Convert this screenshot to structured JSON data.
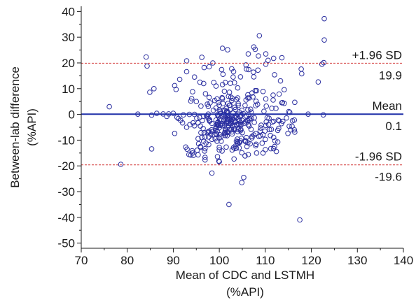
{
  "chart_data": {
    "type": "scatter",
    "title": "",
    "xlabel": [
      "Mean of CDC and LSTMH",
      "(%API)"
    ],
    "ylabel": [
      "Between-lab difference",
      "(%API)"
    ],
    "xlim": [
      70,
      140
    ],
    "ylim": [
      -52,
      42
    ],
    "xticks": [
      "70",
      "80",
      "90",
      "100",
      "110",
      "120",
      "130",
      "140"
    ],
    "yticks": [
      "40",
      "30",
      "20",
      "10",
      "0",
      "-10",
      "-20",
      "-30",
      "-40",
      "-50"
    ],
    "grid": false,
    "reference_lines": [
      {
        "name": "+1.96 SD",
        "value": 19.9,
        "value_label": "19.9",
        "style": "dashed",
        "color": "#d23a3a"
      },
      {
        "name": "Mean",
        "value": 0.1,
        "value_label": "0.1",
        "style": "solid",
        "color": "#1f2fa8"
      },
      {
        "name": "-1.96 SD",
        "value": -19.6,
        "value_label": "-19.6",
        "style": "dashed",
        "color": "#d23a3a"
      }
    ],
    "marker": {
      "shape": "open-circle",
      "color": "#2b2fa0"
    },
    "points": [
      [
        76.1,
        3.0
      ],
      [
        78.6,
        -19.4
      ],
      [
        82.3,
        0.1
      ],
      [
        84.1,
        22.3
      ],
      [
        84.3,
        18.8
      ],
      [
        84.9,
        8.6
      ],
      [
        85.3,
        -0.3
      ],
      [
        85.3,
        -13.4
      ],
      [
        85.8,
        10.0
      ],
      [
        86.4,
        0.4
      ],
      [
        87.8,
        0.2
      ],
      [
        88.6,
        -0.8
      ],
      [
        89.0,
        0.2
      ],
      [
        90.0,
        0.4
      ],
      [
        90.3,
        11.2
      ],
      [
        90.3,
        -7.4
      ],
      [
        90.6,
        9.7
      ],
      [
        90.8,
        -1.1
      ],
      [
        91.1,
        -1.6
      ],
      [
        91.4,
        13.6
      ],
      [
        91.6,
        -2.3
      ],
      [
        92.0,
        -3.3
      ],
      [
        92.2,
        -0.2
      ],
      [
        92.7,
        -12.7
      ],
      [
        92.9,
        20.8
      ],
      [
        92.9,
        16.6
      ],
      [
        92.9,
        -5.0
      ],
      [
        93.0,
        -13.5
      ],
      [
        93.4,
        -15.6
      ],
      [
        93.5,
        -0.0
      ],
      [
        93.6,
        -4.0
      ],
      [
        93.8,
        5.2
      ],
      [
        93.8,
        -15.8
      ],
      [
        94.0,
        6.1
      ],
      [
        94.1,
        -14.1
      ],
      [
        94.2,
        -15.0
      ],
      [
        94.2,
        8.8
      ],
      [
        94.3,
        -3.3
      ],
      [
        94.4,
        -15.9
      ],
      [
        94.6,
        -4.4
      ],
      [
        94.6,
        14.5
      ],
      [
        94.6,
        -0.0
      ],
      [
        95.0,
        5.0
      ],
      [
        95.1,
        -1.5
      ],
      [
        95.2,
        -13.9
      ],
      [
        95.4,
        -15.7
      ],
      [
        95.4,
        -9.4
      ],
      [
        95.4,
        -3.3
      ],
      [
        95.5,
        -11.4
      ],
      [
        95.7,
        -1.2
      ],
      [
        95.8,
        12.5
      ],
      [
        95.9,
        -12.8
      ],
      [
        95.9,
        -12.5
      ],
      [
        95.9,
        -4.5
      ],
      [
        96.0,
        3.2
      ],
      [
        96.0,
        -7.1
      ],
      [
        96.2,
        -9.0
      ],
      [
        96.2,
        22.2
      ],
      [
        96.3,
        -2.4
      ],
      [
        96.5,
        -5.5
      ],
      [
        96.6,
        -0.7
      ],
      [
        96.6,
        12.0
      ],
      [
        96.6,
        -10.4
      ],
      [
        96.7,
        18.2
      ],
      [
        96.7,
        -7.1
      ],
      [
        96.8,
        -14.2
      ],
      [
        96.9,
        -16.7
      ],
      [
        96.9,
        -8.8
      ],
      [
        96.9,
        -17.7
      ],
      [
        96.9,
        -13.3
      ],
      [
        97.0,
        8.0
      ],
      [
        97.1,
        -11.1
      ],
      [
        97.2,
        -0.6
      ],
      [
        97.4,
        -6.9
      ],
      [
        97.4,
        -0.6
      ],
      [
        97.4,
        4.0
      ],
      [
        97.6,
        -1.6
      ],
      [
        97.6,
        0.1
      ],
      [
        97.6,
        3.1
      ],
      [
        97.7,
        -6.9
      ],
      [
        97.7,
        -11.7
      ],
      [
        97.7,
        -8.8
      ],
      [
        97.8,
        18.5
      ],
      [
        97.8,
        -6.5
      ],
      [
        97.8,
        6.6
      ],
      [
        97.9,
        -2.6
      ],
      [
        97.9,
        -2.1
      ],
      [
        97.9,
        -2.5
      ],
      [
        98.0,
        4.5
      ],
      [
        98.1,
        -7.7
      ],
      [
        98.3,
        -6.0
      ],
      [
        98.4,
        -22.8
      ],
      [
        98.4,
        -9.7
      ],
      [
        98.4,
        -3.5
      ],
      [
        98.5,
        -6.7
      ],
      [
        98.6,
        20.0
      ],
      [
        98.7,
        1.6
      ],
      [
        98.8,
        12.4
      ],
      [
        98.8,
        -7.9
      ],
      [
        99.0,
        5.4
      ],
      [
        99.1,
        -9.5
      ],
      [
        99.2,
        -5.3
      ],
      [
        99.2,
        -6.3
      ],
      [
        99.3,
        -2.2
      ],
      [
        99.3,
        11.0
      ],
      [
        99.3,
        -7.5
      ],
      [
        99.3,
        2.5
      ],
      [
        99.4,
        -4.1
      ],
      [
        99.4,
        -7.7
      ],
      [
        99.4,
        -5.0
      ],
      [
        99.5,
        -10.4
      ],
      [
        99.5,
        6.0
      ],
      [
        99.6,
        -16.4
      ],
      [
        99.6,
        -0.1
      ],
      [
        99.6,
        -6.6
      ],
      [
        99.6,
        -3.3
      ],
      [
        99.6,
        -4.0
      ],
      [
        99.7,
        -0.5
      ],
      [
        99.7,
        -3.0
      ],
      [
        99.7,
        -3.2
      ],
      [
        99.8,
        -4.3
      ],
      [
        99.8,
        4.6
      ],
      [
        99.8,
        -3.8
      ],
      [
        99.9,
        -18.1
      ],
      [
        99.9,
        -0.9
      ],
      [
        100.0,
        1.8
      ],
      [
        100.0,
        -5.2
      ],
      [
        100.0,
        -18.4
      ],
      [
        100.0,
        -13.8
      ],
      [
        100.0,
        -12.8
      ],
      [
        100.0,
        -9.2
      ],
      [
        100.0,
        3.6
      ],
      [
        100.1,
        -1.9
      ],
      [
        100.1,
        -7.9
      ],
      [
        100.2,
        -4.2
      ],
      [
        100.2,
        1.2
      ],
      [
        100.3,
        -8.8
      ],
      [
        100.3,
        0.4
      ],
      [
        100.4,
        -10.4
      ],
      [
        100.4,
        -2.3
      ],
      [
        100.5,
        17.4
      ],
      [
        100.5,
        -0.4
      ],
      [
        100.6,
        -14.2
      ],
      [
        100.6,
        -3.6
      ],
      [
        100.6,
        6.5
      ],
      [
        100.6,
        -4.4
      ],
      [
        100.7,
        25.7
      ],
      [
        100.7,
        11.6
      ],
      [
        100.7,
        6.1
      ],
      [
        100.8,
        15.6
      ],
      [
        100.8,
        4.2
      ],
      [
        100.9,
        1.6
      ],
      [
        101.0,
        -0.1
      ],
      [
        101.0,
        -2.0
      ],
      [
        101.0,
        -2.4
      ],
      [
        101.1,
        9.0
      ],
      [
        101.1,
        -4.3
      ],
      [
        101.1,
        -7.4
      ],
      [
        101.2,
        1.6
      ],
      [
        101.2,
        -7.0
      ],
      [
        101.3,
        -6.3
      ],
      [
        101.3,
        -1.4
      ],
      [
        101.3,
        12.4
      ],
      [
        101.3,
        -8.2
      ],
      [
        101.4,
        -7.6
      ],
      [
        101.4,
        -0.3
      ],
      [
        101.4,
        -5.7
      ],
      [
        101.5,
        2.3
      ],
      [
        101.5,
        -3.2
      ],
      [
        101.5,
        -12.7
      ],
      [
        101.6,
        -3.5
      ],
      [
        101.6,
        1.1
      ],
      [
        101.7,
        0.6
      ],
      [
        101.7,
        -0.6
      ],
      [
        101.7,
        -8.3
      ],
      [
        101.7,
        -1.7
      ],
      [
        101.7,
        -2.6
      ],
      [
        101.7,
        -6.7
      ],
      [
        101.8,
        -7.0
      ],
      [
        101.8,
        25.1
      ],
      [
        101.8,
        1.1
      ],
      [
        101.9,
        -1.9
      ],
      [
        101.9,
        4.3
      ],
      [
        101.9,
        -4.4
      ],
      [
        102.0,
        7.0
      ],
      [
        102.0,
        -3.4
      ],
      [
        102.1,
        -35.0
      ],
      [
        102.1,
        -0.3
      ],
      [
        102.2,
        8.6
      ],
      [
        102.2,
        3.5
      ],
      [
        102.2,
        -5.9
      ],
      [
        102.2,
        -1.3
      ],
      [
        102.3,
        3.6
      ],
      [
        102.3,
        -3.5
      ],
      [
        102.3,
        -1.7
      ],
      [
        102.3,
        1.9
      ],
      [
        102.4,
        -3.7
      ],
      [
        102.4,
        12.1
      ],
      [
        102.4,
        -2.1
      ],
      [
        102.5,
        6.7
      ],
      [
        102.6,
        -3.0
      ],
      [
        102.6,
        -5.9
      ],
      [
        102.6,
        -2.5
      ],
      [
        102.6,
        -6.0
      ],
      [
        102.7,
        17.7
      ],
      [
        102.7,
        -0.8
      ],
      [
        102.7,
        5.4
      ],
      [
        102.8,
        -1.8
      ],
      [
        102.8,
        -13.8
      ],
      [
        102.8,
        6.3
      ],
      [
        102.8,
        -6.8
      ],
      [
        102.8,
        -7.6
      ],
      [
        102.9,
        -2.8
      ],
      [
        102.9,
        -4.3
      ],
      [
        103.0,
        14.5
      ],
      [
        103.0,
        0.5
      ],
      [
        103.1,
        -12.9
      ],
      [
        103.1,
        16.6
      ],
      [
        103.2,
        -17.3
      ],
      [
        103.2,
        -5.6
      ],
      [
        103.3,
        12.3
      ],
      [
        103.3,
        -1.2
      ],
      [
        103.4,
        -3.0
      ],
      [
        103.4,
        -13.2
      ],
      [
        103.4,
        -5.9
      ],
      [
        103.4,
        -0.8
      ],
      [
        103.4,
        2.8
      ],
      [
        103.4,
        -3.1
      ],
      [
        103.4,
        -4.7
      ],
      [
        103.5,
        -3.0
      ],
      [
        103.5,
        -12.3
      ],
      [
        103.5,
        1.9
      ],
      [
        103.6,
        -0.5
      ],
      [
        103.7,
        -10.4
      ],
      [
        103.7,
        5.7
      ],
      [
        103.7,
        -13.1
      ],
      [
        103.8,
        -4.2
      ],
      [
        103.8,
        -3.8
      ],
      [
        103.8,
        -1.0
      ],
      [
        103.9,
        -9.6
      ],
      [
        104.0,
        6.4
      ],
      [
        104.0,
        -10.6
      ],
      [
        104.0,
        0.1
      ],
      [
        104.0,
        -11.3
      ],
      [
        104.0,
        10.3
      ],
      [
        104.0,
        -6.7
      ],
      [
        104.1,
        -3.6
      ],
      [
        104.1,
        3.5
      ],
      [
        104.1,
        4.2
      ],
      [
        104.1,
        -5.8
      ],
      [
        104.3,
        1.0
      ],
      [
        104.3,
        -13.0
      ],
      [
        104.3,
        -3.9
      ],
      [
        104.3,
        -10.7
      ],
      [
        104.4,
        -2.5
      ],
      [
        104.4,
        -10.9
      ],
      [
        104.5,
        -1.0
      ],
      [
        104.6,
        -3.2
      ],
      [
        104.6,
        14.6
      ],
      [
        104.6,
        -6.3
      ],
      [
        104.6,
        -10.3
      ],
      [
        104.6,
        -0.6
      ],
      [
        104.7,
        -5.9
      ],
      [
        104.7,
        -3.8
      ],
      [
        104.7,
        -4.2
      ],
      [
        104.8,
        -0.3
      ],
      [
        104.8,
        -9.3
      ],
      [
        104.9,
        -26.5
      ],
      [
        104.9,
        1.6
      ],
      [
        104.9,
        -14.9
      ],
      [
        105.0,
        -7.1
      ],
      [
        105.0,
        -2.3
      ],
      [
        105.2,
        0.3
      ],
      [
        105.3,
        -24.5
      ],
      [
        105.5,
        -3.4
      ],
      [
        105.6,
        3.5
      ],
      [
        105.6,
        -16.1
      ],
      [
        105.7,
        -2.8
      ],
      [
        105.7,
        -10.6
      ],
      [
        105.7,
        -10.2
      ],
      [
        105.8,
        19.2
      ],
      [
        105.8,
        5.6
      ],
      [
        105.9,
        17.6
      ],
      [
        105.9,
        -9.0
      ],
      [
        105.9,
        -0.6
      ],
      [
        106.0,
        -12.5
      ],
      [
        106.0,
        -2.4
      ],
      [
        106.2,
        1.8
      ],
      [
        106.2,
        -2.5
      ],
      [
        106.2,
        7.6
      ],
      [
        106.2,
        6.4
      ],
      [
        106.2,
        -11.0
      ],
      [
        106.3,
        -4.0
      ],
      [
        106.3,
        23.5
      ],
      [
        106.3,
        -15.6
      ],
      [
        106.4,
        17.4
      ],
      [
        106.4,
        0.0
      ],
      [
        106.5,
        -1.6
      ],
      [
        106.5,
        -4.5
      ],
      [
        106.5,
        6.4
      ],
      [
        106.5,
        -2.2
      ],
      [
        106.7,
        -11.4
      ],
      [
        106.8,
        2.0
      ],
      [
        106.9,
        0.9
      ],
      [
        106.9,
        -5.8
      ],
      [
        107.0,
        -1.5
      ],
      [
        107.1,
        -8.6
      ],
      [
        107.1,
        -9.1
      ],
      [
        107.1,
        8.3
      ],
      [
        107.3,
        6.8
      ],
      [
        107.4,
        16.4
      ],
      [
        107.5,
        26.2
      ],
      [
        107.5,
        -8.0
      ],
      [
        107.5,
        14.6
      ],
      [
        107.6,
        -1.3
      ],
      [
        107.6,
        -3.1
      ],
      [
        107.8,
        25.3
      ],
      [
        107.8,
        9.2
      ],
      [
        107.9,
        -12.2
      ],
      [
        107.9,
        3.4
      ],
      [
        107.9,
        -7.4
      ],
      [
        108.0,
        -11.6
      ],
      [
        108.0,
        5.1
      ],
      [
        108.1,
        9.2
      ],
      [
        108.1,
        -15.0
      ],
      [
        108.3,
        3.9
      ],
      [
        108.4,
        17.2
      ],
      [
        108.5,
        22.7
      ],
      [
        108.6,
        -8.6
      ],
      [
        108.7,
        30.6
      ],
      [
        108.9,
        -8.3
      ],
      [
        108.9,
        -6.4
      ],
      [
        109.0,
        -5.3
      ],
      [
        109.1,
        -4.2
      ],
      [
        109.3,
        -11.2
      ],
      [
        109.5,
        -15.0
      ],
      [
        109.5,
        -7.9
      ],
      [
        109.5,
        8.9
      ],
      [
        109.7,
        1.2
      ],
      [
        109.9,
        -6.5
      ],
      [
        110.0,
        -9.7
      ],
      [
        110.0,
        -13.7
      ],
      [
        110.1,
        -4.3
      ],
      [
        110.1,
        6.0
      ],
      [
        110.1,
        19.5
      ],
      [
        110.1,
        23.5
      ],
      [
        110.2,
        -2.9
      ],
      [
        110.2,
        3.2
      ],
      [
        110.4,
        -1.3
      ],
      [
        110.6,
        21.0
      ],
      [
        110.7,
        -3.9
      ],
      [
        110.8,
        -1.5
      ],
      [
        110.9,
        -5.9
      ],
      [
        111.1,
        -8.2
      ],
      [
        111.2,
        -13.3
      ],
      [
        111.3,
        -5.8
      ],
      [
        111.4,
        2.4
      ],
      [
        111.5,
        -3.0
      ],
      [
        111.7,
        7.5
      ],
      [
        111.7,
        5.6
      ],
      [
        111.8,
        -2.7
      ],
      [
        111.8,
        21.8
      ],
      [
        111.8,
        -8.9
      ],
      [
        111.8,
        -13.3
      ],
      [
        112.0,
        15.4
      ],
      [
        112.0,
        -12.5
      ],
      [
        112.1,
        -10.3
      ],
      [
        112.3,
        2.3
      ],
      [
        112.4,
        -14.4
      ],
      [
        112.7,
        -10.7
      ],
      [
        112.7,
        -6.2
      ],
      [
        112.8,
        -2.2
      ],
      [
        112.9,
        -5.4
      ],
      [
        113.0,
        -2.5
      ],
      [
        113.0,
        7.9
      ],
      [
        113.3,
        13.0
      ],
      [
        113.5,
        -3.6
      ],
      [
        113.6,
        4.5
      ],
      [
        113.6,
        22.0
      ],
      [
        113.7,
        4.6
      ],
      [
        113.8,
        -2.7
      ],
      [
        114.1,
        9.6
      ],
      [
        114.1,
        4.3
      ],
      [
        114.6,
        -1.4
      ],
      [
        114.9,
        -7.4
      ],
      [
        115.1,
        1.1
      ],
      [
        115.2,
        -4.6
      ],
      [
        115.3,
        0.8
      ],
      [
        115.5,
        -6.0
      ],
      [
        115.8,
        -4.6
      ],
      [
        115.9,
        -2.5
      ],
      [
        116.3,
        -6.0
      ],
      [
        116.3,
        -2.2
      ],
      [
        116.4,
        -6.9
      ],
      [
        116.4,
        4.7
      ],
      [
        117.5,
        -41.0
      ],
      [
        117.8,
        17.6
      ],
      [
        117.9,
        15.8
      ],
      [
        119.3,
        0.1
      ],
      [
        121.5,
        12.6
      ],
      [
        122.3,
        19.5
      ],
      [
        122.6,
        -0.2
      ],
      [
        122.7,
        20.1
      ],
      [
        122.8,
        28.9
      ],
      [
        122.8,
        37.2
      ]
    ]
  }
}
